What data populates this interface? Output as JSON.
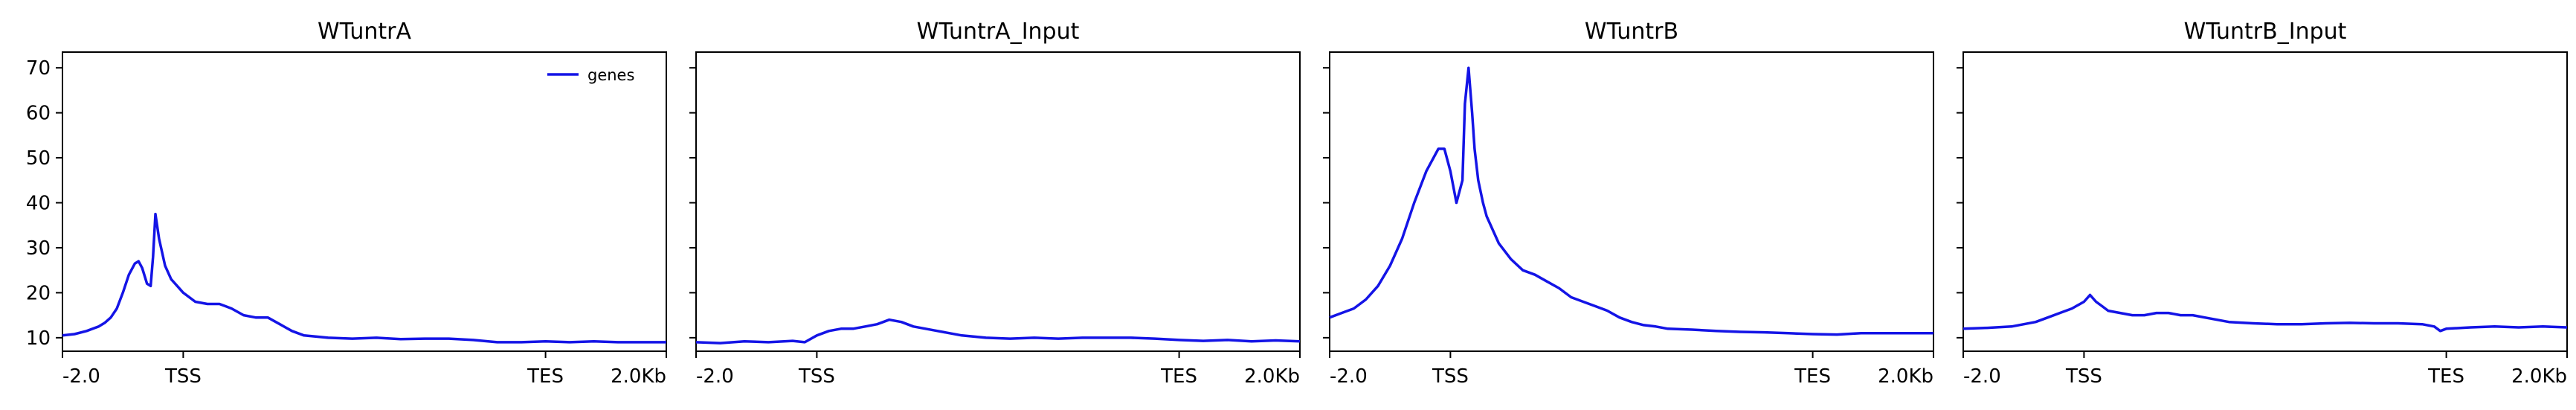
{
  "chart_data": [
    {
      "type": "line",
      "title": "WTuntrA",
      "xticks": [
        "-2.0",
        "TSS",
        "TES",
        "2.0Kb"
      ],
      "ylim": [
        7.0,
        73.5
      ],
      "yticks": [
        "10",
        "20",
        "30",
        "40",
        "50",
        "60",
        "70"
      ],
      "legend": {
        "position": "top-right",
        "entries": [
          "genes"
        ]
      },
      "grid": false,
      "series": [
        {
          "name": "genes",
          "color": "#1414e6",
          "x": [
            0,
            1,
            2,
            3,
            3.5,
            4,
            4.5,
            5,
            5.5,
            6,
            6.3,
            6.6,
            7,
            7.3,
            7.5,
            7.7,
            8,
            8.5,
            9,
            9.5,
            10,
            11,
            12,
            13,
            13.5,
            14,
            15,
            16,
            17,
            18,
            19,
            20,
            22,
            24,
            26,
            28,
            30,
            32,
            34,
            36,
            38,
            40,
            42,
            44,
            46,
            48,
            50
          ],
          "y": [
            10.5,
            10.8,
            11.5,
            12.5,
            13.3,
            14.5,
            16.5,
            20,
            24,
            26.5,
            27,
            25.5,
            22,
            21.5,
            28,
            37.5,
            32,
            26,
            23,
            21.5,
            20,
            18,
            17.5,
            17.5,
            17,
            16.5,
            15,
            14.5,
            14.5,
            13,
            11.5,
            10.5,
            10,
            9.8,
            10,
            9.7,
            9.8,
            9.8,
            9.5,
            9,
            9,
            9.2,
            9,
            9.2,
            9,
            9,
            9
          ]
        }
      ]
    },
    {
      "type": "line",
      "title": "WTuntrA_Input",
      "xticks": [
        "-2.0",
        "TSS",
        "TES",
        "2.0Kb"
      ],
      "ylim": [
        7.0,
        73.5
      ],
      "grid": false,
      "series": [
        {
          "name": "genes",
          "color": "#1414e6",
          "x": [
            0,
            2,
            4,
            6,
            8,
            9,
            10,
            11,
            12,
            13,
            14,
            15,
            16,
            17,
            18,
            19,
            20,
            22,
            24,
            26,
            28,
            30,
            32,
            34,
            36,
            38,
            40,
            42,
            44,
            46,
            48,
            50
          ],
          "y": [
            9,
            8.8,
            9.2,
            9,
            9.3,
            9,
            10.5,
            11.5,
            12,
            12,
            12.5,
            13,
            14,
            13.5,
            12.5,
            12,
            11.5,
            10.5,
            10,
            9.8,
            10,
            9.8,
            10,
            10,
            10,
            9.8,
            9.5,
            9.3,
            9.5,
            9.2,
            9.4,
            9.2
          ]
        }
      ]
    },
    {
      "type": "line",
      "title": "WTuntrB",
      "xticks": [
        "-2.0",
        "TSS",
        "TES",
        "2.0Kb"
      ],
      "ylim": [
        7.0,
        73.5
      ],
      "grid": false,
      "series": [
        {
          "name": "genes",
          "color": "#1414e6",
          "x": [
            0,
            1,
            2,
            3,
            4,
            5,
            6,
            7,
            8,
            9,
            9.5,
            10,
            10.5,
            11,
            11.2,
            11.5,
            11.8,
            12,
            12.3,
            12.7,
            13,
            14,
            15,
            16,
            17,
            18,
            19,
            20,
            21,
            22,
            23,
            24,
            25,
            26,
            27,
            28,
            30,
            32,
            34,
            36,
            38,
            40,
            42,
            44,
            46,
            48,
            50
          ],
          "y": [
            14.5,
            15.5,
            16.5,
            18.5,
            21.5,
            26,
            32,
            40,
            47,
            52,
            52,
            47,
            40,
            45,
            62,
            70,
            60,
            52,
            45,
            40,
            37,
            31,
            27.5,
            25,
            24,
            22.5,
            21,
            19,
            18,
            17,
            16,
            14.5,
            13.5,
            12.8,
            12.5,
            12,
            11.8,
            11.5,
            11.3,
            11.2,
            11,
            10.8,
            10.7,
            11,
            11,
            11,
            11
          ]
        }
      ]
    },
    {
      "type": "line",
      "title": "WTuntrB_Input",
      "xticks": [
        "-2.0",
        "TSS",
        "TES",
        "2.0Kb"
      ],
      "ylim": [
        7.0,
        73.5
      ],
      "grid": false,
      "series": [
        {
          "name": "genes",
          "color": "#1414e6",
          "x": [
            0,
            2,
            4,
            6,
            7,
            8,
            9,
            10,
            10.5,
            11,
            11.5,
            12,
            13,
            14,
            15,
            16,
            17,
            18,
            19,
            20,
            22,
            24,
            26,
            28,
            30,
            32,
            34,
            36,
            38,
            39,
            39.5,
            40,
            42,
            44,
            46,
            48,
            50
          ],
          "y": [
            12,
            12.2,
            12.5,
            13.5,
            14.5,
            15.5,
            16.5,
            18,
            19.5,
            18,
            17,
            16,
            15.5,
            15,
            15,
            15.5,
            15.5,
            15,
            15,
            14.5,
            13.5,
            13.2,
            13,
            13,
            13.2,
            13.3,
            13.2,
            13.2,
            13,
            12.5,
            11.5,
            12,
            12.3,
            12.5,
            12.3,
            12.5,
            12.3
          ]
        }
      ]
    }
  ]
}
